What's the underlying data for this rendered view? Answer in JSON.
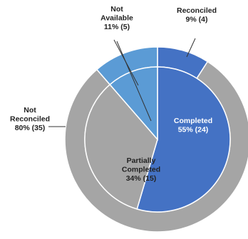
{
  "chart_data": {
    "type": "pie",
    "title": "",
    "rings": [
      {
        "name": "",
        "position": "outer",
        "slices": [
          {
            "label_lines": [
              "Reconciled",
              "9% (4)"
            ],
            "percent": 9,
            "count": 4,
            "color": "#4472C4"
          },
          {
            "label_lines": [
              "Not",
              "Reconciled",
              "80% (35)"
            ],
            "percent": 80,
            "count": 35,
            "color": "#A5A5A5"
          },
          {
            "label_lines": [
              "Not",
              "Available",
              "11% (5)"
            ],
            "percent": 11,
            "count": 5,
            "color": "#5B9BD5"
          }
        ]
      },
      {
        "name": "",
        "position": "inner",
        "slices": [
          {
            "label_lines": [
              "Completed",
              "55% (24)"
            ],
            "percent": 55,
            "count": 24,
            "color": "#4472C4"
          },
          {
            "label_lines": [
              "Partially",
              "Completed",
              "34% (15)"
            ],
            "percent": 34,
            "count": 15,
            "color": "#A5A5A5"
          },
          {
            "label_lines": [
              "Not",
              "Available",
              "11% (5)"
            ],
            "percent": 11,
            "count": 5,
            "color": "#5B9BD5"
          }
        ]
      }
    ],
    "legend": "none",
    "grid": false
  }
}
